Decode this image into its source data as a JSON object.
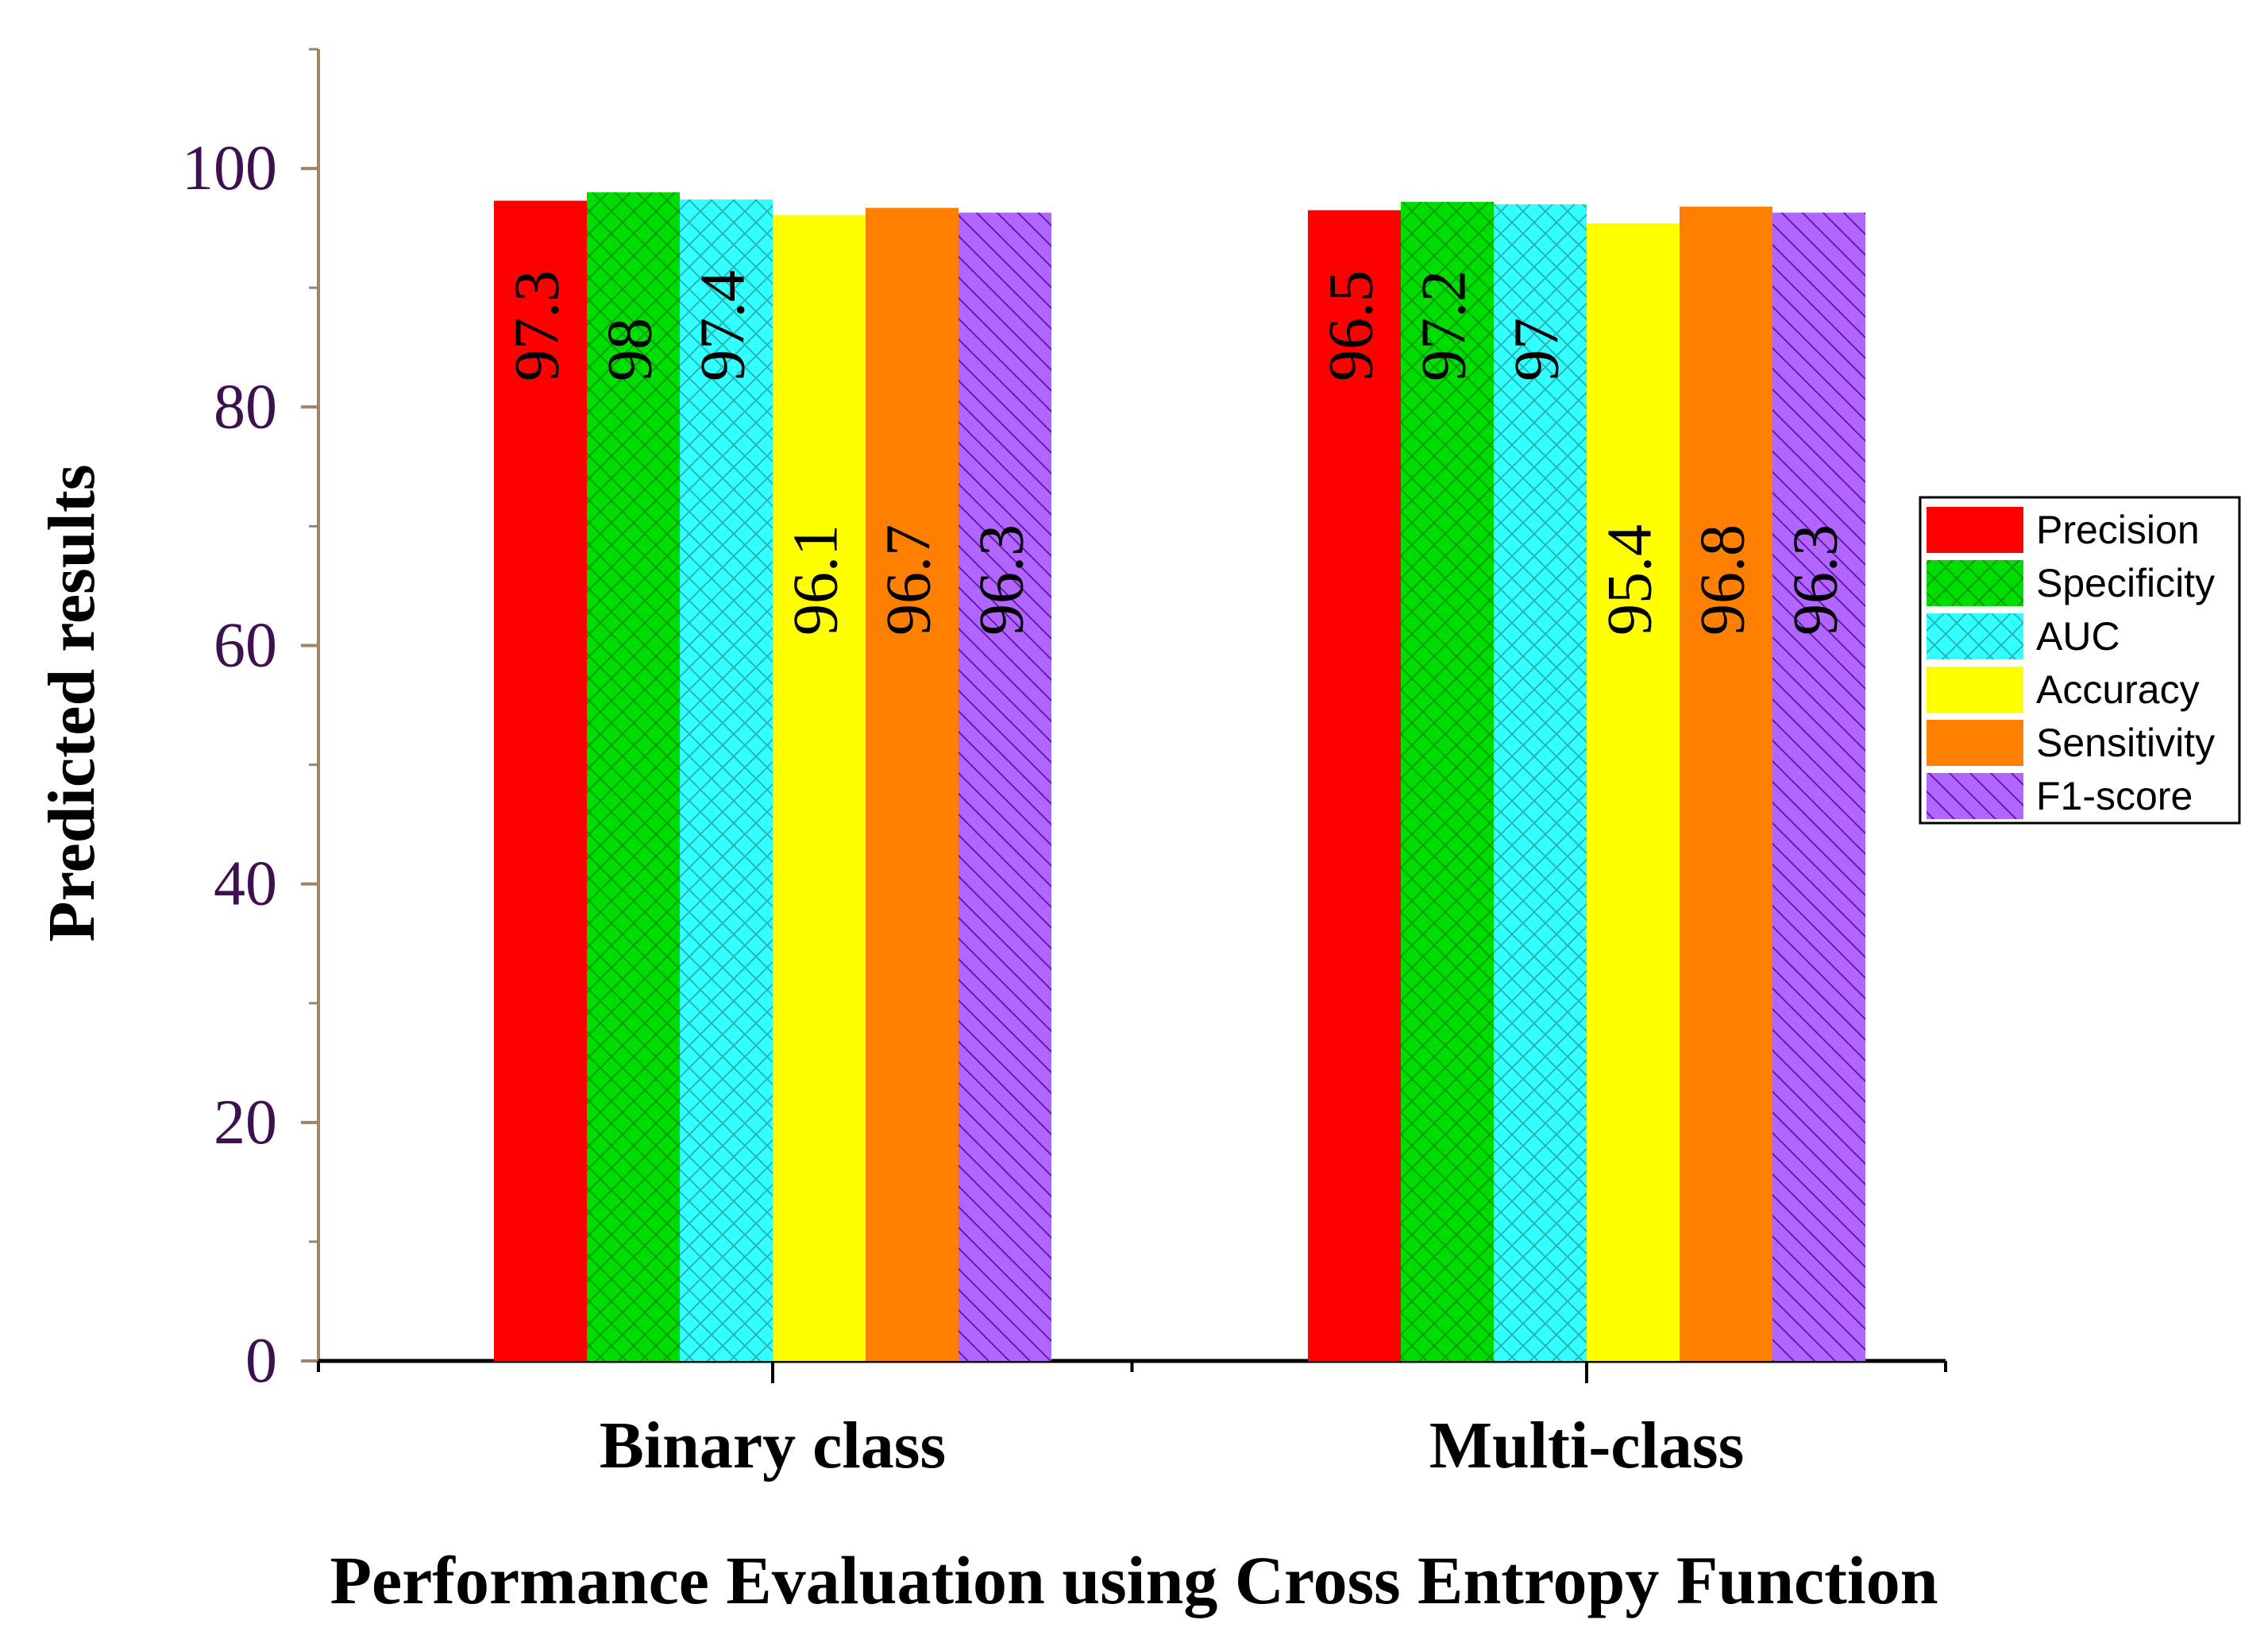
{
  "chart_data": {
    "type": "bar",
    "xlabel": "Performance Evaluation using Cross Entropy Function",
    "ylabel": "Predicted results",
    "ylim": [
      0,
      110
    ],
    "yticks": [
      0,
      20,
      40,
      60,
      80,
      100
    ],
    "categories": [
      "Binary class",
      "Multi-class"
    ],
    "series": [
      {
        "name": "Precision",
        "values": [
          97.3,
          96.5
        ],
        "value_labels": [
          "97.3",
          "96.5"
        ],
        "color": "#ff0000",
        "pattern": "none"
      },
      {
        "name": "Specificity",
        "values": [
          98.0,
          97.2
        ],
        "value_labels": [
          "98",
          "97.2"
        ],
        "color": "#00dd00",
        "pattern": "crosshatch"
      },
      {
        "name": "AUC",
        "values": [
          97.4,
          97.0
        ],
        "value_labels": [
          "97.4",
          "97"
        ],
        "color": "#33ffff",
        "pattern": "crosshatch"
      },
      {
        "name": "Accuracy",
        "values": [
          96.1,
          95.4
        ],
        "value_labels": [
          "96.1",
          "95.4"
        ],
        "color": "#ffff00",
        "pattern": "none"
      },
      {
        "name": "Sensitivity",
        "values": [
          96.7,
          96.8
        ],
        "value_labels": [
          "96.7",
          "96.8"
        ],
        "color": "#ff8000",
        "pattern": "none"
      },
      {
        "name": "F1-score",
        "values": [
          96.3,
          96.3
        ],
        "value_labels": [
          "96.3",
          "96.3"
        ],
        "color": "#b366ff",
        "pattern": "diagonal"
      }
    ],
    "legend_position": "right",
    "grid": false,
    "colors": {
      "axis": "#a08466",
      "bottom_axis": "#000000",
      "tick_label": "#3d1050",
      "text": "#000000"
    }
  }
}
